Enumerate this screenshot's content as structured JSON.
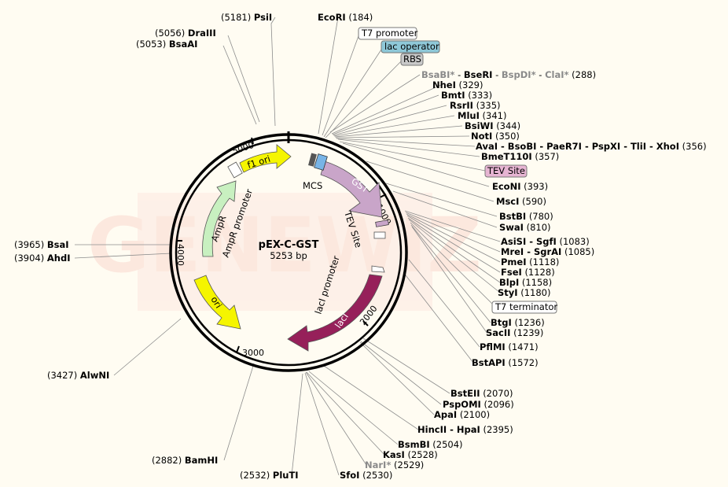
{
  "plasmid": {
    "name": "pEX-C-GST",
    "size_label": "5253 bp"
  },
  "watermark": "GENEWIZ",
  "scale_ticks": [
    "1000",
    "2000",
    "3000",
    "4000",
    "5000"
  ],
  "features": {
    "mcs": "MCS",
    "gst": "GST",
    "tev_site": "TEV Site",
    "laci_promoter": "lacI promoter",
    "laci": "lacI",
    "ori": "ori",
    "ampr": "AmpR",
    "ampr_promoter": "AmpR promoter",
    "f1_ori": "f1 ori"
  },
  "boxed_labels": {
    "t7_promoter": "T7 promoter",
    "lac_operator": "lac operator",
    "rbs": "RBS",
    "tev_site": "TEV Site",
    "t7_terminator": "T7 terminator"
  },
  "colors": {
    "gst": "#c9a5c9",
    "laci": "#96205a",
    "ori": "#f5f500",
    "f1_ori": "#f5f500",
    "ampr": "#c8f0c0",
    "lac_operator_box": "#8ec8d8",
    "rbs_box": "#c8c8c8",
    "tev_box": "#e6b4d2",
    "mcs_blue": "#78b4e6"
  },
  "sites": {
    "ecori": {
      "name": "EcoRI",
      "pos": "(184)"
    },
    "psii": {
      "name": "PsiI",
      "pos": "(5181)"
    },
    "draiii": {
      "name": "DraIII",
      "pos": "(5056)"
    },
    "bsaai": {
      "name": "BsaAI",
      "pos": "(5053)"
    },
    "bsabi_group": {
      "a": "BsaBI*",
      "s1": " - ",
      "b": "BseRI",
      "s2": " - ",
      "c": "BspDI*",
      "s3": " - ",
      "d": "ClaI*",
      "pos": "(288)"
    },
    "nhei": {
      "name": "NheI",
      "pos": "(329)"
    },
    "bmti": {
      "name": "BmtI",
      "pos": "(333)"
    },
    "rsrii": {
      "name": "RsrII",
      "pos": "(335)"
    },
    "mlui": {
      "name": "MluI",
      "pos": "(341)"
    },
    "bsiwi": {
      "name": "BsiWI",
      "pos": "(344)"
    },
    "noti": {
      "name": "NotI",
      "pos": "(350)"
    },
    "avai_group": {
      "name": "AvaI - BsoBI - PaeR7I - PspXI - TliI - XhoI",
      "pos": "(356)"
    },
    "bmet110i": {
      "name": "BmeT110I",
      "pos": "(357)"
    },
    "econi": {
      "name": "EcoNI",
      "pos": "(393)"
    },
    "msci": {
      "name": "MscI",
      "pos": "(590)"
    },
    "bstbi": {
      "name": "BstBI",
      "pos": "(780)"
    },
    "swai": {
      "name": "SwaI",
      "pos": "(810)"
    },
    "asisi": {
      "name": "AsiSI - SgfI",
      "pos": "(1083)"
    },
    "mrei": {
      "name": "MreI - SgrAI",
      "pos": "(1085)"
    },
    "pmei": {
      "name": "PmeI",
      "pos": "(1118)"
    },
    "fsei": {
      "name": "FseI",
      "pos": "(1128)"
    },
    "blpi": {
      "name": "BlpI",
      "pos": "(1158)"
    },
    "styi": {
      "name": "StyI",
      "pos": "(1180)"
    },
    "btgi": {
      "name": "BtgI",
      "pos": "(1236)"
    },
    "sacii": {
      "name": "SacII",
      "pos": "(1239)"
    },
    "pflmi": {
      "name": "PflMI",
      "pos": "(1471)"
    },
    "bstapi": {
      "name": "BstAPI",
      "pos": "(1572)"
    },
    "bsteii": {
      "name": "BstEII",
      "pos": "(2070)"
    },
    "pspomi": {
      "name": "PspOMI",
      "pos": "(2096)"
    },
    "apai": {
      "name": "ApaI",
      "pos": "(2100)"
    },
    "hincii": {
      "name": "HincII - HpaI",
      "pos": "(2395)"
    },
    "bsmbi": {
      "name": "BsmBI",
      "pos": "(2504)"
    },
    "kasi": {
      "name": "KasI",
      "pos": "(2528)"
    },
    "nari": {
      "name": "NarI*",
      "pos": "(2529)"
    },
    "sfoi": {
      "name": "SfoI",
      "pos": "(2530)"
    },
    "pluti": {
      "name": "PluTI",
      "pos": "(2532)"
    },
    "bamhi": {
      "name": "BamHI",
      "pos": "(2882)"
    },
    "alwni": {
      "name": "AlwNI",
      "pos": "(3427)"
    },
    "bsai": {
      "name": "BsaI",
      "pos": "(3965)"
    },
    "ahdi": {
      "name": "AhdI",
      "pos": "(3904)"
    }
  }
}
